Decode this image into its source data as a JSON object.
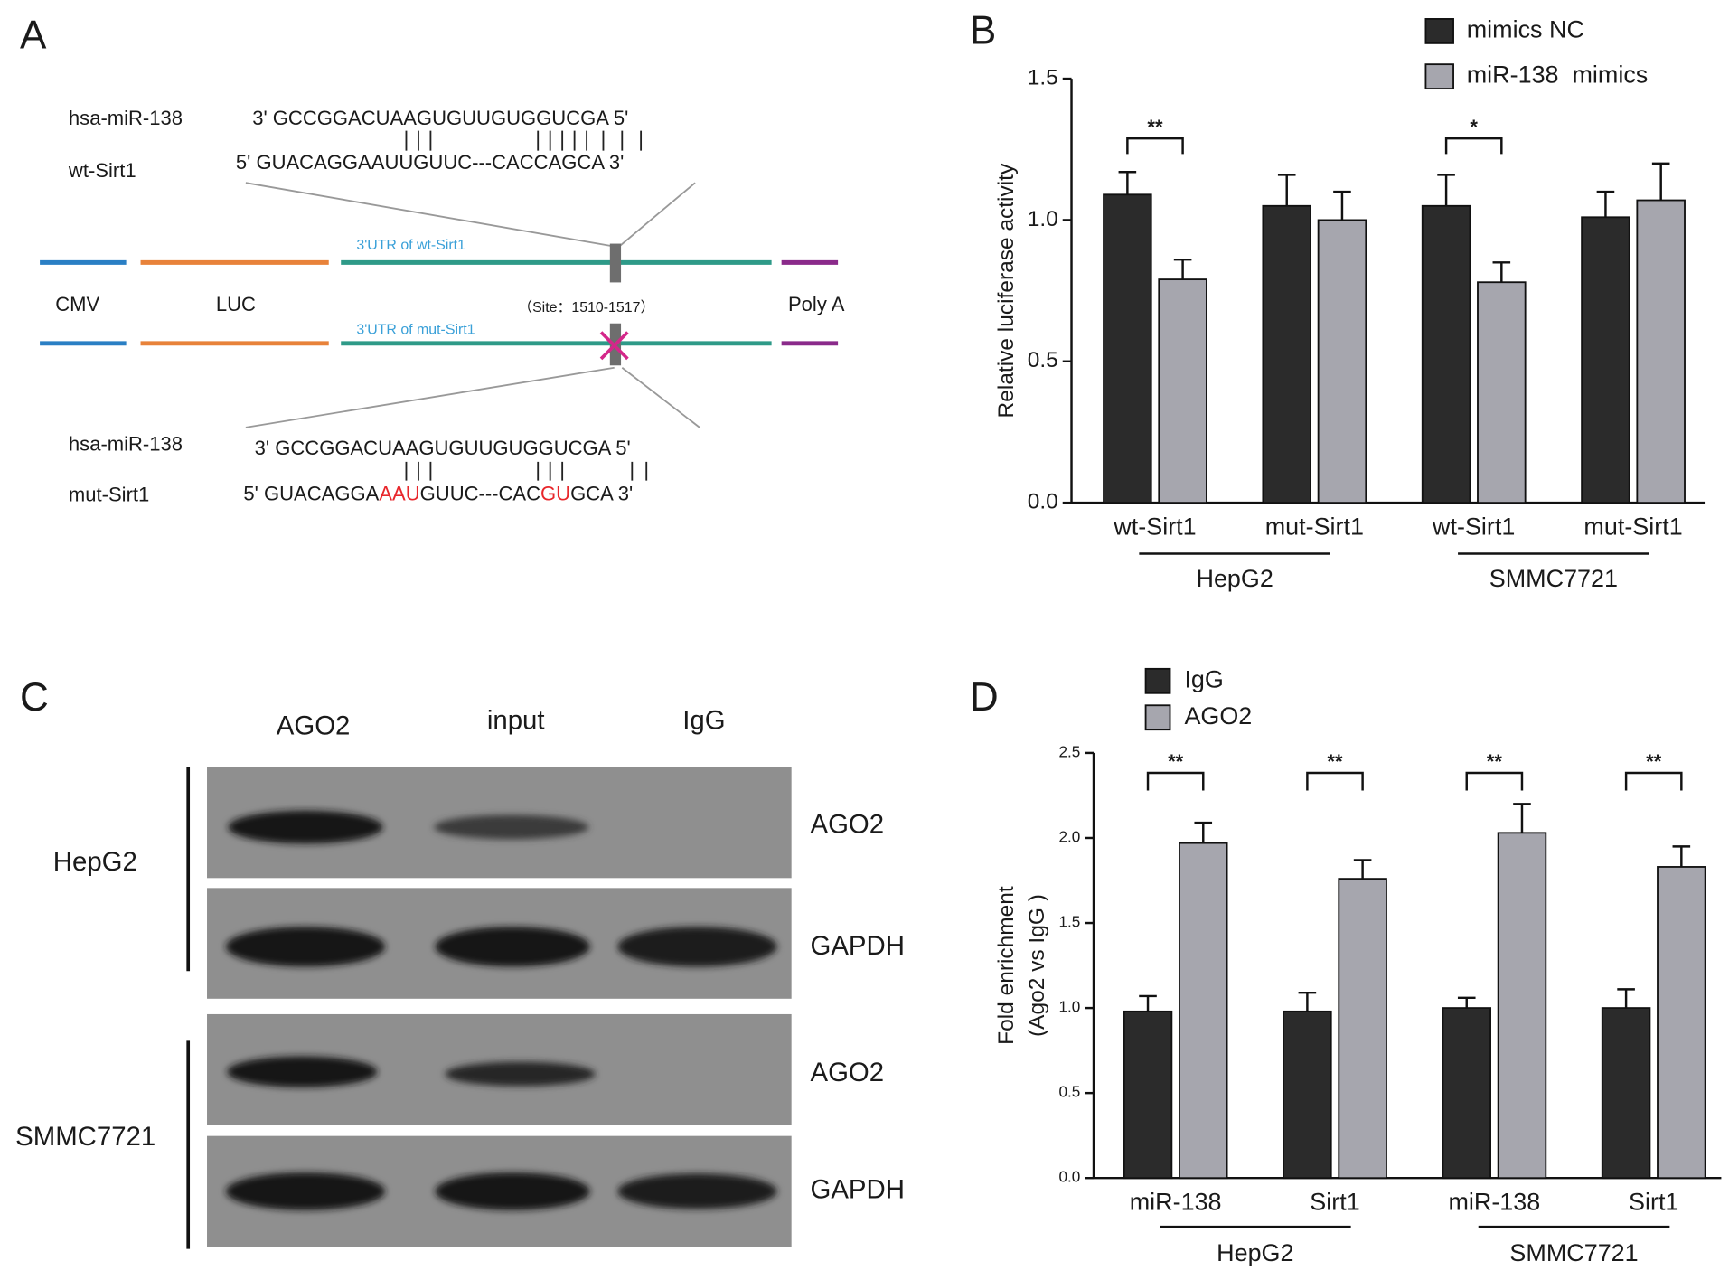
{
  "panel_labels": [
    "A",
    "B",
    "C",
    "D"
  ],
  "diagram": {
    "wild_type": {
      "mirna_name": "hsa-miR-138",
      "mirna_seq": "3' GCCGGACUAAGUGUUGUGGUCGA 5'",
      "target_name": "wt-Sirt1",
      "target_seq": "5' GUACAGGAAUUGUUC---CACCAGCA 3'",
      "utr_label": "3'UTR of wt-Sirt1"
    },
    "mutant": {
      "mirna_name": "hsa-miR-138",
      "mirna_seq": "3' GCCGGACUAAGUGUUGUGGUCGA 5'",
      "target_name": "mut-Sirt1",
      "target_segments": [
        {
          "text": "5' GUACAGGA",
          "mutated": false
        },
        {
          "text": "AAU",
          "mutated": true
        },
        {
          "text": "GUUC---CAC",
          "mutated": false
        },
        {
          "text": "GU",
          "mutated": true
        },
        {
          "text": "GCA 3'",
          "mutated": false
        }
      ],
      "utr_label": "3'UTR of mut-Sirt1"
    },
    "elements": [
      "CMV",
      "LUC",
      "Poly A"
    ],
    "site_label": "（Site：1510-1517）"
  },
  "blot": {
    "columns": [
      "AGO2",
      "input",
      "IgG"
    ],
    "cell_lines": [
      {
        "name": "HepG2",
        "targets": [
          "AGO2",
          "GAPDH"
        ]
      },
      {
        "name": "SMMC7721",
        "targets": [
          "AGO2",
          "GAPDH"
        ]
      }
    ]
  },
  "chart_data": [
    {
      "type": "bar",
      "y_label": [
        "Relative luciferase activity"
      ],
      "categories": [
        "wt-Sirt1",
        "mut-Sirt1",
        "wt-Sirt1",
        "mut-Sirt1"
      ],
      "groups": [
        "HepG2",
        "SMMC7721"
      ],
      "series": [
        {
          "name": "mimics NC",
          "color": "#2b2b2b",
          "values": [
            1.09,
            1.05,
            1.05,
            1.01
          ],
          "errors": [
            0.08,
            0.11,
            0.11,
            0.09
          ]
        },
        {
          "name": "miR-138  mimics",
          "color": "#a6a6ae",
          "values": [
            0.79,
            1.0,
            0.78,
            1.07
          ],
          "errors": [
            0.07,
            0.1,
            0.07,
            0.13
          ]
        }
      ],
      "significance": [
        "**",
        null,
        "*",
        null
      ],
      "ylim": [
        0,
        1.5
      ],
      "yticks": [
        {
          "value": 0,
          "label": "0.0"
        },
        0.5,
        {
          "value": 1,
          "label": "1.0"
        },
        1.5
      ],
      "legend": "top-right"
    },
    {
      "type": "bar",
      "y_label": [
        "Fold enrichment",
        "(Ago2 vs IgG )"
      ],
      "categories": [
        "miR-138",
        "Sirt1",
        "miR-138",
        "Sirt1"
      ],
      "groups": [
        "HepG2",
        "SMMC7721"
      ],
      "series": [
        {
          "name": "IgG",
          "color": "#2b2b2b",
          "values": [
            0.98,
            0.98,
            1.0,
            1.0
          ],
          "errors": [
            0.09,
            0.11,
            0.06,
            0.11
          ]
        },
        {
          "name": "AGO2",
          "color": "#a6a6ae",
          "values": [
            1.97,
            1.76,
            2.03,
            1.83
          ],
          "errors": [
            0.12,
            0.11,
            0.17,
            0.12
          ]
        }
      ],
      "significance": [
        "**",
        "**",
        "**",
        "**"
      ],
      "ylim": [
        0,
        2.5
      ],
      "yticks": [
        {
          "value": 0,
          "label": "0.0"
        },
        0.5,
        {
          "value": 1,
          "label": "1.0"
        },
        1.5,
        {
          "value": 2,
          "label": "2.0"
        },
        2.5
      ],
      "legend": "top-left"
    }
  ]
}
